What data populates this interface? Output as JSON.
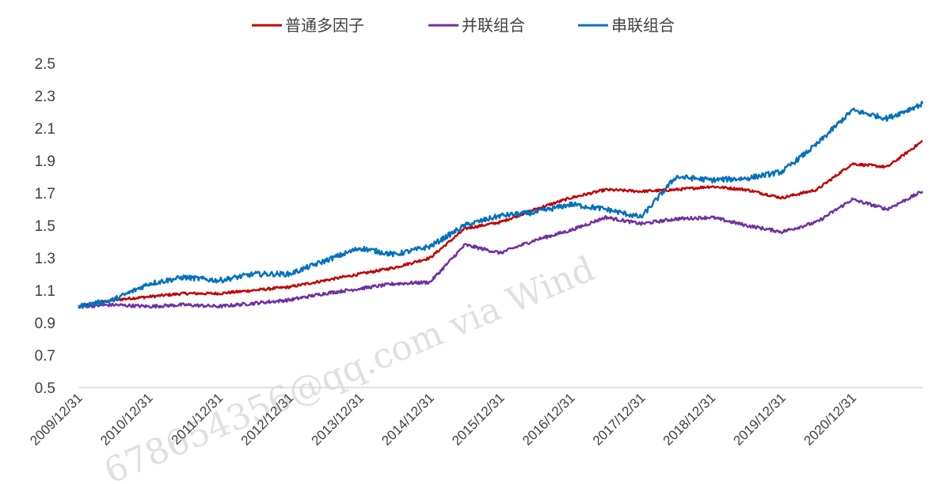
{
  "chart_data": {
    "type": "line",
    "title": "",
    "xlabel": "",
    "ylabel": "",
    "ylim": [
      0.5,
      2.5
    ],
    "y_ticks": [
      "2.5",
      "2.3",
      "2.1",
      "1.9",
      "1.7",
      "1.5",
      "1.3",
      "1.1",
      "0.9",
      "0.7",
      "0.5"
    ],
    "x_tick_labels": [
      "2009/12/31",
      "2010/12/31",
      "2011/12/31",
      "2012/12/31",
      "2013/12/31",
      "2014/12/31",
      "2015/12/31",
      "2016/12/31",
      "2017/12/31",
      "2018/12/31",
      "2019/12/31",
      "2020/12/31"
    ],
    "x_range": [
      "2009-12-31",
      "2021-12-31"
    ],
    "grid": false,
    "legend_position": "top-center",
    "watermark": "678654356@qq.com via Wind",
    "x": [
      "2009-12-31",
      "2010-06-30",
      "2010-12-31",
      "2011-06-30",
      "2011-12-31",
      "2012-06-30",
      "2012-12-31",
      "2013-06-30",
      "2013-12-31",
      "2014-06-30",
      "2014-12-31",
      "2015-06-30",
      "2015-12-31",
      "2016-06-30",
      "2016-12-31",
      "2017-06-30",
      "2017-12-31",
      "2018-06-30",
      "2018-12-31",
      "2019-06-30",
      "2019-12-31",
      "2020-06-30",
      "2020-12-31",
      "2021-06-30",
      "2021-12-31"
    ],
    "series": [
      {
        "name": "普通多因子",
        "color": "#c00000",
        "values": [
          1.0,
          1.04,
          1.06,
          1.08,
          1.08,
          1.1,
          1.12,
          1.16,
          1.2,
          1.24,
          1.3,
          1.48,
          1.52,
          1.6,
          1.67,
          1.72,
          1.71,
          1.72,
          1.74,
          1.72,
          1.67,
          1.72,
          1.88,
          1.86,
          2.02
        ]
      },
      {
        "name": "并联组合",
        "color": "#7030a0",
        "values": [
          1.0,
          1.01,
          1.0,
          1.01,
          1.0,
          1.02,
          1.04,
          1.08,
          1.11,
          1.14,
          1.15,
          1.38,
          1.33,
          1.41,
          1.47,
          1.55,
          1.51,
          1.54,
          1.55,
          1.5,
          1.46,
          1.52,
          1.66,
          1.6,
          1.71
        ]
      },
      {
        "name": "串联组合",
        "color": "#0070c0",
        "values": [
          1.0,
          1.04,
          1.14,
          1.18,
          1.16,
          1.2,
          1.2,
          1.28,
          1.36,
          1.32,
          1.37,
          1.5,
          1.56,
          1.58,
          1.63,
          1.6,
          1.55,
          1.8,
          1.78,
          1.79,
          1.83,
          2.0,
          2.21,
          2.16,
          2.25
        ]
      }
    ]
  }
}
